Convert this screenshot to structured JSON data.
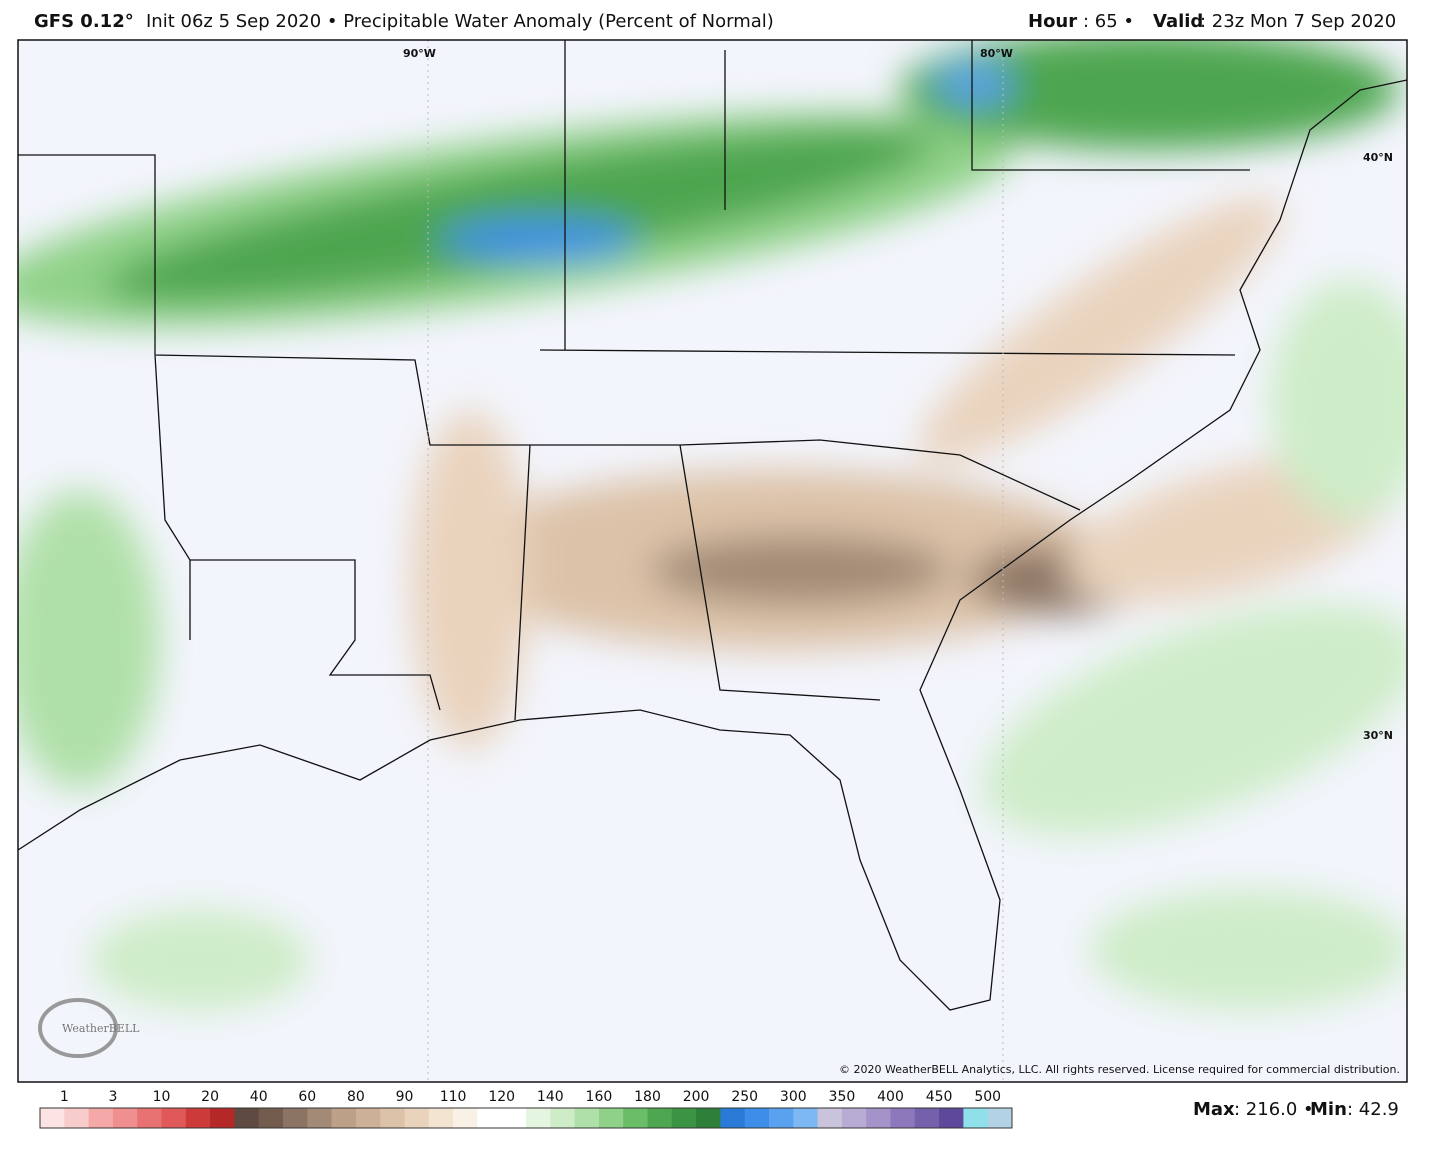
{
  "header": {
    "model": "GFS 0.12°",
    "description": "Init 06z 5 Sep 2020 • Precipitable Water Anomaly (Percent of Normal)",
    "hour_label": "Hour",
    "hour_value": ": 65 •",
    "valid_label": "Valid",
    "valid_value": ": 23z Mon 7 Sep 2020"
  },
  "map": {
    "lon_labels": [
      "90°W",
      "80°W"
    ],
    "lat_labels": [
      "40°N",
      "30°N"
    ],
    "logo": "WeatherBELL",
    "copyright": "© 2020 WeatherBELL Analytics, LLC. All rights reserved. License required for commercial distribution."
  },
  "colorbar": {
    "labels": [
      "1",
      "3",
      "10",
      "20",
      "40",
      "60",
      "80",
      "90",
      "110",
      "120",
      "140",
      "160",
      "180",
      "200",
      "250",
      "300",
      "350",
      "400",
      "450",
      "500"
    ],
    "colors": [
      "#fde4e4",
      "#f9cccc",
      "#f4a8a8",
      "#ef8f8f",
      "#e87272",
      "#e05858",
      "#cc3a3a",
      "#b52828",
      "#5e4a40",
      "#735c4d",
      "#8c7464",
      "#a38a76",
      "#bca088",
      "#ccb097",
      "#dcc2a8",
      "#e9d3bd",
      "#f3e3d1",
      "#faf1e6",
      "#ffffff",
      "#ffffff",
      "#e4f5e0",
      "#cdecc7",
      "#b0e0a9",
      "#8fd188",
      "#6cbd68",
      "#4ea650",
      "#3b9444",
      "#2e7f39",
      "#2a7ad8",
      "#3d8ee8",
      "#5aa2f0",
      "#7db8f5",
      "#c9c4dc",
      "#b8acd4",
      "#a393c8",
      "#8c78bb",
      "#7560ab",
      "#5e489c",
      "#8fe0ea",
      "#b4d2e6"
    ]
  },
  "footer": {
    "max_label": "Max",
    "max_value": ": 216.0 •",
    "min_label": "Min",
    "min_value": ": 42.9"
  }
}
